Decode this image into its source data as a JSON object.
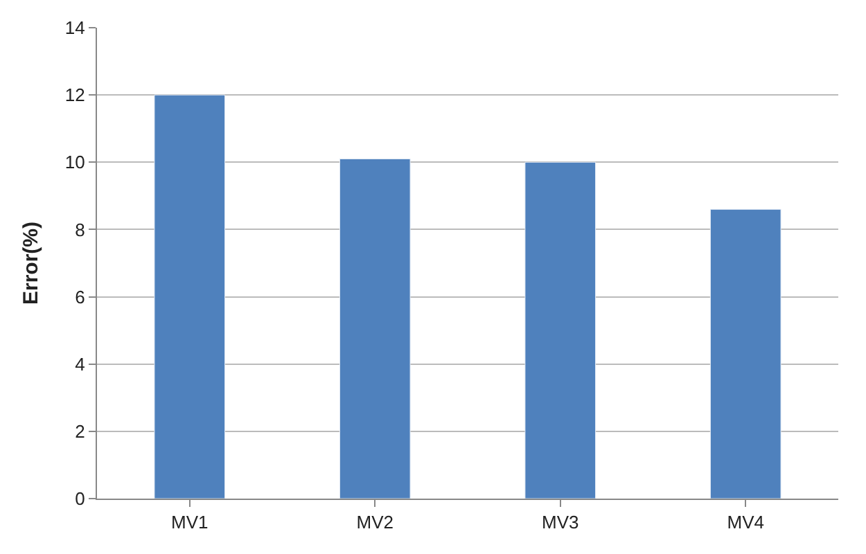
{
  "chart_data": {
    "type": "bar",
    "ylabel": "Error(%)",
    "categories": [
      "MV1",
      "MV2",
      "MV3",
      "MV4"
    ],
    "values": [
      12,
      10.1,
      10,
      8.6
    ],
    "color": "#4f81bd",
    "ylim": [
      0,
      14
    ],
    "yticks": [
      0,
      2,
      4,
      6,
      8,
      10,
      12,
      14
    ],
    "grid": "y"
  }
}
